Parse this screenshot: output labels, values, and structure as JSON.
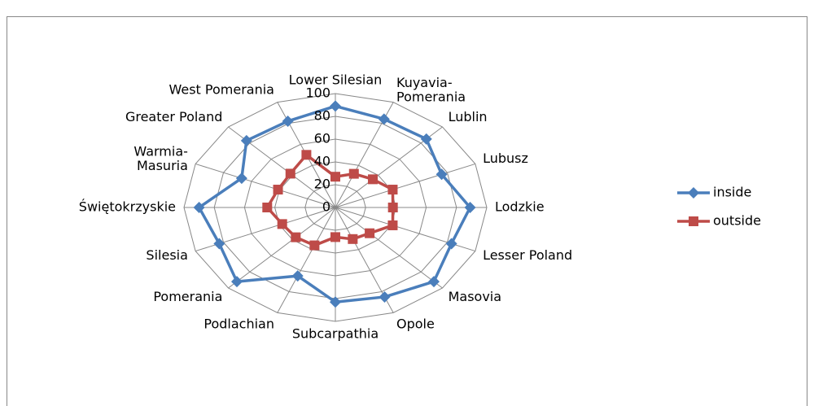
{
  "chart_data": {
    "type": "radar",
    "categories": [
      "Lower Silesian",
      "Kuyavia-Pomerania",
      "Lublin",
      "Lubusz",
      "Lodzkie",
      "Lesser Poland",
      "Masovia",
      "Opole",
      "Subcarpathia",
      "Podlachian",
      "Pomerania",
      "Silesia",
      "Świętokrzyskie",
      "Warmia-Masuria",
      "Greater Poland",
      "West Pomerania"
    ],
    "series": [
      {
        "name": "inside",
        "color": "#4a7ebb",
        "values": [
          89,
          84,
          85,
          76,
          89,
          83,
          92,
          85,
          83,
          65,
          92,
          83,
          90,
          67,
          83,
          82
        ]
      },
      {
        "name": "outside",
        "color": "#be4b48",
        "values": [
          27,
          32,
          35,
          41,
          38,
          41,
          32,
          30,
          26,
          36,
          37,
          38,
          45,
          41,
          42,
          50
        ]
      }
    ],
    "ylim": [
      0,
      100
    ],
    "yticks": [
      0,
      20,
      40,
      60,
      80,
      100
    ],
    "grid": true,
    "legend": "right"
  }
}
